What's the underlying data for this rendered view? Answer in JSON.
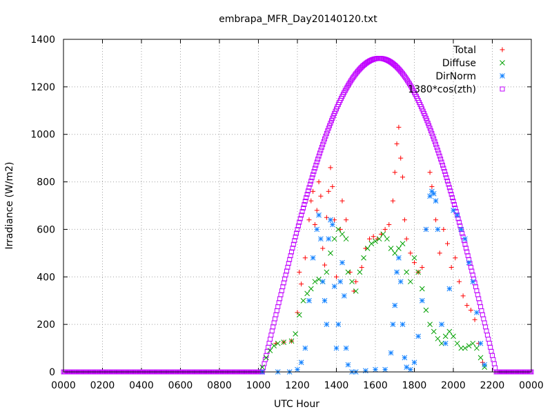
{
  "chart_data": {
    "type": "scatter",
    "title": "embrapa_MFR_Day20140120.txt",
    "xlabel": "UTC Hour",
    "ylabel": "Irradiance (W/m2)",
    "xlim": [
      0,
      24
    ],
    "ylim": [
      0,
      1400
    ],
    "x_ticks": [
      "0000",
      "0200",
      "0400",
      "0600",
      "0800",
      "1000",
      "1200",
      "1400",
      "1600",
      "1800",
      "2000",
      "2200",
      "0000"
    ],
    "y_ticks": [
      "0",
      "200",
      "400",
      "600",
      "800",
      "1000",
      "1200",
      "1400"
    ],
    "grid": true,
    "legend_position": "top-right",
    "series": [
      {
        "name": "Total",
        "marker": "plus",
        "color": "#ff0000",
        "points": [
          [
            10.9,
            120
          ],
          [
            11.3,
            125
          ],
          [
            11.7,
            130
          ],
          [
            12.0,
            250
          ],
          [
            12.1,
            420
          ],
          [
            12.2,
            370
          ],
          [
            12.4,
            480
          ],
          [
            12.6,
            640
          ],
          [
            12.7,
            720
          ],
          [
            12.8,
            760
          ],
          [
            12.9,
            620
          ],
          [
            13.0,
            680
          ],
          [
            13.1,
            800
          ],
          [
            13.2,
            740
          ],
          [
            13.3,
            520
          ],
          [
            13.4,
            450
          ],
          [
            13.5,
            650
          ],
          [
            13.6,
            760
          ],
          [
            13.7,
            860
          ],
          [
            13.8,
            780
          ],
          [
            13.9,
            640
          ],
          [
            14.0,
            400
          ],
          [
            14.2,
            600
          ],
          [
            14.3,
            720
          ],
          [
            14.5,
            640
          ],
          [
            14.7,
            420
          ],
          [
            14.9,
            340
          ],
          [
            15.0,
            380
          ],
          [
            15.3,
            440
          ],
          [
            15.5,
            520
          ],
          [
            15.7,
            560
          ],
          [
            15.9,
            570
          ],
          [
            16.1,
            560
          ],
          [
            16.3,
            580
          ],
          [
            16.5,
            600
          ],
          [
            16.7,
            620
          ],
          [
            16.9,
            720
          ],
          [
            17.0,
            840
          ],
          [
            17.1,
            960
          ],
          [
            17.2,
            1030
          ],
          [
            17.3,
            900
          ],
          [
            17.4,
            820
          ],
          [
            17.5,
            640
          ],
          [
            17.6,
            560
          ],
          [
            17.8,
            500
          ],
          [
            18.0,
            460
          ],
          [
            18.2,
            420
          ],
          [
            18.4,
            440
          ],
          [
            18.6,
            600
          ],
          [
            18.8,
            840
          ],
          [
            18.9,
            780
          ],
          [
            19.1,
            640
          ],
          [
            19.3,
            500
          ],
          [
            19.5,
            600
          ],
          [
            19.7,
            540
          ],
          [
            19.9,
            440
          ],
          [
            20.1,
            480
          ],
          [
            20.3,
            380
          ],
          [
            20.5,
            320
          ],
          [
            20.7,
            280
          ],
          [
            20.9,
            260
          ],
          [
            21.1,
            220
          ],
          [
            21.3,
            120
          ],
          [
            21.5,
            40
          ]
        ]
      },
      {
        "name": "Diffuse",
        "marker": "cross",
        "color": "#00a000",
        "points": [
          [
            10.2,
            20
          ],
          [
            10.4,
            60
          ],
          [
            10.6,
            90
          ],
          [
            10.8,
            110
          ],
          [
            11.0,
            120
          ],
          [
            11.3,
            125
          ],
          [
            11.7,
            130
          ],
          [
            11.9,
            160
          ],
          [
            12.1,
            240
          ],
          [
            12.3,
            300
          ],
          [
            12.5,
            330
          ],
          [
            12.7,
            350
          ],
          [
            12.9,
            380
          ],
          [
            13.1,
            390
          ],
          [
            13.3,
            380
          ],
          [
            13.5,
            420
          ],
          [
            13.7,
            500
          ],
          [
            13.9,
            560
          ],
          [
            14.1,
            600
          ],
          [
            14.3,
            580
          ],
          [
            14.5,
            560
          ],
          [
            14.6,
            420
          ],
          [
            14.8,
            380
          ],
          [
            15.0,
            340
          ],
          [
            15.2,
            420
          ],
          [
            15.4,
            480
          ],
          [
            15.6,
            520
          ],
          [
            15.8,
            540
          ],
          [
            16.0,
            550
          ],
          [
            16.2,
            560
          ],
          [
            16.4,
            580
          ],
          [
            16.6,
            560
          ],
          [
            16.8,
            520
          ],
          [
            17.0,
            500
          ],
          [
            17.2,
            520
          ],
          [
            17.4,
            540
          ],
          [
            17.6,
            420
          ],
          [
            17.8,
            380
          ],
          [
            18.0,
            480
          ],
          [
            18.2,
            420
          ],
          [
            18.4,
            350
          ],
          [
            18.6,
            260
          ],
          [
            18.8,
            200
          ],
          [
            19.0,
            170
          ],
          [
            19.2,
            140
          ],
          [
            19.4,
            120
          ],
          [
            19.6,
            150
          ],
          [
            19.8,
            170
          ],
          [
            20.0,
            150
          ],
          [
            20.2,
            120
          ],
          [
            20.4,
            100
          ],
          [
            20.6,
            100
          ],
          [
            20.8,
            110
          ],
          [
            21.0,
            120
          ],
          [
            21.2,
            100
          ],
          [
            21.4,
            60
          ],
          [
            21.6,
            20
          ]
        ]
      },
      {
        "name": "DirNorm",
        "marker": "star",
        "color": "#1080ff",
        "points": [
          [
            10.2,
            0
          ],
          [
            11.0,
            0
          ],
          [
            11.6,
            0
          ],
          [
            12.0,
            10
          ],
          [
            12.2,
            40
          ],
          [
            12.4,
            100
          ],
          [
            12.6,
            300
          ],
          [
            12.8,
            480
          ],
          [
            13.0,
            600
          ],
          [
            13.1,
            660
          ],
          [
            13.2,
            560
          ],
          [
            13.3,
            380
          ],
          [
            13.4,
            300
          ],
          [
            13.5,
            200
          ],
          [
            13.6,
            560
          ],
          [
            13.7,
            640
          ],
          [
            13.8,
            620
          ],
          [
            13.9,
            360
          ],
          [
            14.0,
            100
          ],
          [
            14.1,
            200
          ],
          [
            14.2,
            380
          ],
          [
            14.3,
            460
          ],
          [
            14.4,
            320
          ],
          [
            14.5,
            100
          ],
          [
            14.6,
            30
          ],
          [
            14.8,
            0
          ],
          [
            15.0,
            0
          ],
          [
            15.5,
            5
          ],
          [
            16.0,
            10
          ],
          [
            16.5,
            10
          ],
          [
            16.8,
            80
          ],
          [
            16.9,
            200
          ],
          [
            17.0,
            280
          ],
          [
            17.1,
            420
          ],
          [
            17.2,
            480
          ],
          [
            17.3,
            380
          ],
          [
            17.4,
            200
          ],
          [
            17.5,
            60
          ],
          [
            17.6,
            20
          ],
          [
            17.8,
            10
          ],
          [
            18.0,
            40
          ],
          [
            18.2,
            150
          ],
          [
            18.4,
            300
          ],
          [
            18.6,
            600
          ],
          [
            18.8,
            740
          ],
          [
            18.9,
            760
          ],
          [
            19.0,
            750
          ],
          [
            19.1,
            720
          ],
          [
            19.2,
            600
          ],
          [
            19.4,
            200
          ],
          [
            19.6,
            120
          ],
          [
            19.8,
            350
          ],
          [
            20.0,
            680
          ],
          [
            20.2,
            660
          ],
          [
            20.4,
            600
          ],
          [
            20.6,
            560
          ],
          [
            20.8,
            460
          ],
          [
            21.0,
            380
          ],
          [
            21.2,
            250
          ],
          [
            21.4,
            120
          ],
          [
            21.6,
            30
          ]
        ]
      },
      {
        "name": "1380*cos(zth)",
        "marker": "square",
        "color": "#c000ff",
        "sunrise": 10.2,
        "sunset": 22.2,
        "peak": 1320
      }
    ]
  }
}
